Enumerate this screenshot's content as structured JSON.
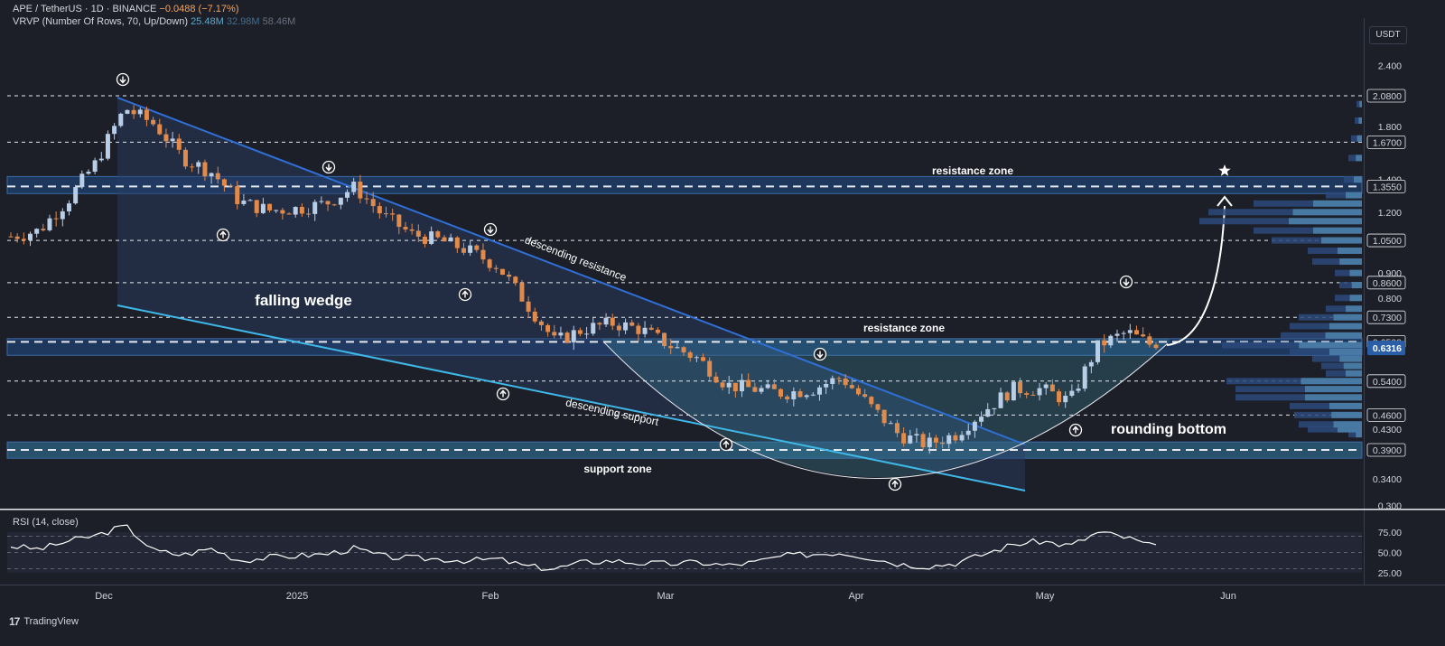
{
  "legend": {
    "symbol": "APE / TetherUS · 1D · BINANCE",
    "change": "−0.0488 (−7.17%)",
    "vrvp_label": "VRVP (Number Of Rows, 70, Up/Down)",
    "vrvp_up": "25.48M",
    "vrvp_down": "32.98M",
    "vrvp_total": "58.46M"
  },
  "rsi_title": "RSI (14, close)",
  "currency": "USDT",
  "branding": "TradingView",
  "colors": {
    "background": "#1d1f28",
    "up_candle": "#b8cde6",
    "down_candle": "#e08a4c",
    "wedge_resistance": "#2f6fd6",
    "wedge_support": "#3fb8e8",
    "zone": "#1e3a63",
    "last_price": "#2a5fa8"
  },
  "chart_data": [
    {
      "type": "candlestick",
      "title": "",
      "x_axis_labels": [
        "Dec",
        "2025",
        "Feb",
        "Mar",
        "Apr",
        "May",
        "Jun"
      ],
      "y_scale": "log",
      "y_axis_labels": [
        "2.400",
        "2.0800",
        "1.800",
        "1.6700",
        "1.400",
        "1.3550",
        "1.200",
        "1.0500",
        "0.900",
        "0.8600",
        "0.800",
        "0.7300",
        "0.6500",
        "0.6316",
        "0.5400",
        "0.4600",
        "0.4300",
        "0.3900",
        "0.3400",
        "0.300"
      ],
      "horizontal_levels": [
        2.08,
        1.67,
        1.355,
        1.05,
        0.86,
        0.73,
        0.65,
        0.54,
        0.46,
        0.39
      ],
      "last_price": 0.6316,
      "close_series_weekly": [
        1.07,
        1.1,
        1.27,
        1.52,
        1.96,
        1.82,
        1.55,
        1.45,
        1.26,
        1.21,
        1.22,
        1.25,
        1.35,
        1.18,
        1.08,
        1.05,
        1.0,
        0.93,
        0.78,
        0.65,
        0.69,
        0.71,
        0.69,
        0.64,
        0.6,
        0.53,
        0.52,
        0.51,
        0.52,
        0.55,
        0.48,
        0.42,
        0.4,
        0.42,
        0.47,
        0.52,
        0.52,
        0.49,
        0.64,
        0.68,
        0.632
      ],
      "annotations": [
        "falling wedge",
        "descending resistance",
        "descending support",
        "resistance zone",
        "resistance zone",
        "support zone",
        "rounding bottom"
      ],
      "zones": [
        {
          "label": "resistance zone",
          "from": 1.31,
          "to": 1.42
        },
        {
          "label": "resistance zone",
          "from": 0.61,
          "to": 0.66
        },
        {
          "label": "support zone",
          "from": 0.375,
          "to": 0.405
        }
      ]
    },
    {
      "type": "line",
      "title": "RSI (14, close)",
      "y_axis_labels": [
        "75.00",
        "50.00",
        "25.00"
      ],
      "levels": [
        70,
        50,
        30
      ],
      "values": [
        58,
        54,
        64,
        71,
        83,
        52,
        47,
        55,
        40,
        44,
        46,
        48,
        55,
        45,
        43,
        42,
        40,
        42,
        33,
        30,
        38,
        40,
        37,
        36,
        38,
        34,
        38,
        46,
        48,
        50,
        44,
        36,
        33,
        37,
        48,
        60,
        64,
        58,
        75,
        68,
        56
      ]
    }
  ]
}
